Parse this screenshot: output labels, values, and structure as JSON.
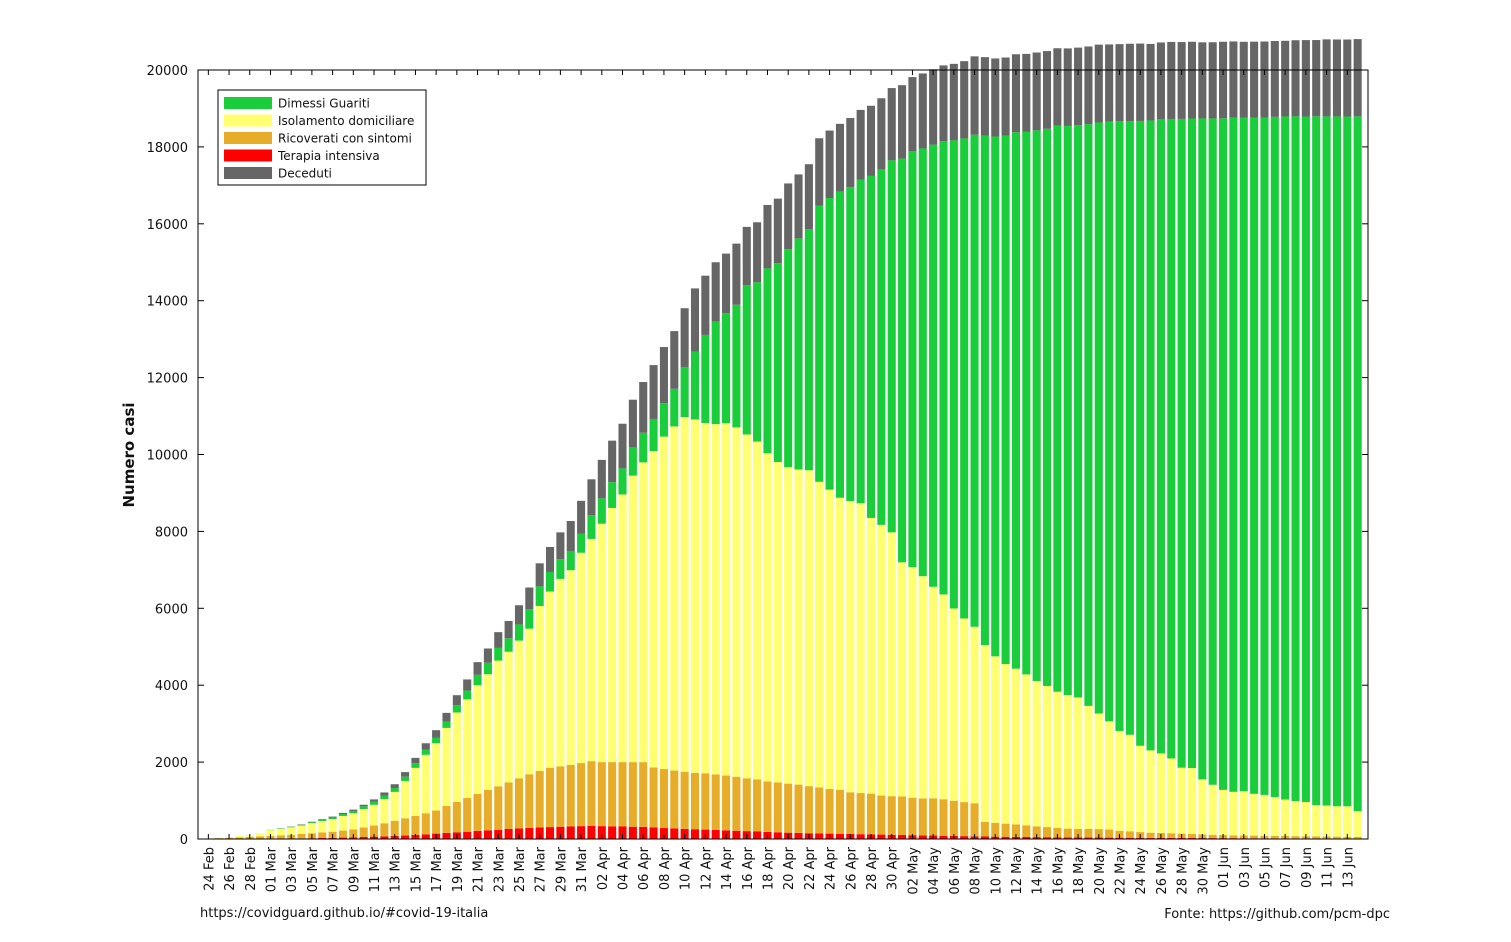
{
  "footer": {
    "left": "https://covidguard.github.io/#covid-19-italia",
    "right": "Fonte: https://github.com/pcm-dpc"
  },
  "chart_data": {
    "type": "bar",
    "stacked": true,
    "title": "",
    "xlabel": "",
    "ylabel": "Numero casi",
    "ylim": [
      0,
      20000
    ],
    "yticks": [
      0,
      2000,
      4000,
      6000,
      8000,
      10000,
      12000,
      14000,
      16000,
      18000,
      20000
    ],
    "legend_position": "top-left",
    "grid": false,
    "categories": [
      "24 Feb",
      "25 Feb",
      "26 Feb",
      "27 Feb",
      "28 Feb",
      "29 Feb",
      "01 Mar",
      "02 Mar",
      "03 Mar",
      "04 Mar",
      "05 Mar",
      "06 Mar",
      "07 Mar",
      "08 Mar",
      "09 Mar",
      "10 Mar",
      "11 Mar",
      "12 Mar",
      "13 Mar",
      "14 Mar",
      "15 Mar",
      "16 Mar",
      "17 Mar",
      "18 Mar",
      "19 Mar",
      "20 Mar",
      "21 Mar",
      "22 Mar",
      "23 Mar",
      "24 Mar",
      "25 Mar",
      "26 Mar",
      "27 Mar",
      "28 Mar",
      "29 Mar",
      "30 Mar",
      "31 Mar",
      "01 Apr",
      "02 Apr",
      "03 Apr",
      "04 Apr",
      "05 Apr",
      "06 Apr",
      "07 Apr",
      "08 Apr",
      "09 Apr",
      "10 Apr",
      "11 Apr",
      "12 Apr",
      "13 Apr",
      "14 Apr",
      "15 Apr",
      "16 Apr",
      "17 Apr",
      "18 Apr",
      "19 Apr",
      "20 Apr",
      "21 Apr",
      "22 Apr",
      "23 Apr",
      "24 Apr",
      "25 Apr",
      "26 Apr",
      "27 Apr",
      "28 Apr",
      "29 Apr",
      "30 Apr",
      "01 May",
      "02 May",
      "03 May",
      "04 May",
      "05 May",
      "06 May",
      "07 May",
      "08 May",
      "09 May",
      "10 May",
      "11 May",
      "12 May",
      "13 May",
      "14 May",
      "15 May",
      "16 May",
      "17 May",
      "18 May",
      "19 May",
      "20 May",
      "21 May",
      "22 May",
      "23 May",
      "24 May",
      "25 May",
      "26 May",
      "27 May",
      "28 May",
      "29 May",
      "30 May",
      "31 May",
      "01 Jun",
      "02 Jun",
      "03 Jun",
      "04 Jun",
      "05 Jun",
      "06 Jun",
      "07 Jun",
      "08 Jun",
      "09 Jun",
      "10 Jun",
      "11 Jun",
      "12 Jun",
      "13 Jun",
      "14 Jun"
    ],
    "tick_labels": [
      "24 Feb",
      "26 Feb",
      "28 Feb",
      "01 Mar",
      "03 Mar",
      "05 Mar",
      "07 Mar",
      "09 Mar",
      "11 Mar",
      "13 Mar",
      "15 Mar",
      "17 Mar",
      "19 Mar",
      "21 Mar",
      "23 Mar",
      "25 Mar",
      "27 Mar",
      "29 Mar",
      "31 Mar",
      "02 Apr",
      "04 Apr",
      "06 Apr",
      "08 Apr",
      "10 Apr",
      "12 Apr",
      "14 Apr",
      "16 Apr",
      "18 Apr",
      "20 Apr",
      "22 Apr",
      "24 Apr",
      "26 Apr",
      "28 Apr",
      "30 Apr",
      "02 May",
      "04 May",
      "06 May",
      "08 May",
      "10 May",
      "12 May",
      "14 May",
      "16 May",
      "18 May",
      "20 May",
      "22 May",
      "24 May",
      "26 May",
      "28 May",
      "30 May",
      "01 Jun",
      "03 Jun",
      "05 Jun",
      "07 Jun",
      "09 Jun",
      "11 Jun",
      "13 Jun"
    ],
    "series": [
      {
        "name": "Terapia intensiva",
        "color": "#ff0000",
        "values": [
          1,
          2,
          3,
          4,
          5,
          6,
          8,
          10,
          13,
          17,
          21,
          26,
          31,
          37,
          44,
          52,
          61,
          70,
          80,
          90,
          105,
          120,
          140,
          160,
          175,
          190,
          210,
          225,
          240,
          260,
          275,
          290,
          300,
          310,
          320,
          330,
          335,
          340,
          335,
          330,
          325,
          320,
          315,
          300,
          285,
          275,
          265,
          255,
          245,
          235,
          225,
          215,
          205,
          195,
          185,
          175,
          165,
          160,
          150,
          145,
          140,
          135,
          130,
          125,
          120,
          115,
          110,
          105,
          100,
          95,
          90,
          85,
          80,
          75,
          70,
          65,
          60,
          58,
          55,
          52,
          50,
          48,
          45,
          43,
          41,
          40,
          38,
          36,
          35,
          33,
          32,
          30,
          29,
          28,
          27,
          26,
          25,
          24,
          23,
          22,
          21,
          20,
          19,
          18,
          17,
          17,
          16,
          16,
          15,
          15,
          14,
          14
        ]
      },
      {
        "name": "Ricoverati con sintomi",
        "color": "#e8ad28",
        "values": [
          11,
          20,
          28,
          40,
          52,
          63,
          72,
          86,
          97,
          113,
          129,
          144,
          159,
          183,
          206,
          248,
          289,
          340,
          395,
          450,
          495,
          550,
          600,
          700,
          790,
          880,
          960,
          1055,
          1130,
          1210,
          1305,
          1395,
          1470,
          1545,
          1570,
          1600,
          1640,
          1685,
          1665,
          1670,
          1675,
          1680,
          1685,
          1560,
          1535,
          1505,
          1485,
          1465,
          1465,
          1445,
          1425,
          1405,
          1375,
          1355,
          1315,
          1295,
          1275,
          1255,
          1225,
          1195,
          1160,
          1145,
          1085,
          1070,
          1060,
          1015,
          1005,
          1000,
          975,
          960,
          970,
          950,
          915,
          885,
          860,
          380,
          360,
          342,
          325,
          304,
          280,
          262,
          245,
          227,
          220,
          222,
          220,
          214,
          180,
          168,
          148,
          134,
          131,
          121,
          113,
          104,
          95,
          86,
          80,
          75,
          71,
          69,
          66,
          64,
          61,
          58,
          56,
          53,
          49,
          47,
          43,
          40
        ]
      },
      {
        "name": "Isolamento domiciliare",
        "color": "#ffff70",
        "values": [
          0,
          0,
          20,
          32,
          45,
          80,
          150,
          170,
          195,
          220,
          260,
          300,
          330,
          380,
          420,
          480,
          540,
          630,
          750,
          970,
          1250,
          1520,
          1750,
          2030,
          2325,
          2560,
          2830,
          3005,
          3270,
          3400,
          3580,
          3785,
          4290,
          4580,
          4875,
          5060,
          5470,
          5780,
          6200,
          6610,
          6960,
          7450,
          7795,
          8230,
          8645,
          8950,
          9225,
          9190,
          9110,
          9110,
          9165,
          9085,
          8940,
          8785,
          8530,
          8335,
          8230,
          8195,
          8215,
          7950,
          7785,
          7595,
          7575,
          7535,
          7170,
          7040,
          6860,
          6090,
          5995,
          5780,
          5500,
          5325,
          5000,
          4775,
          4590,
          4600,
          4330,
          4150,
          4050,
          3925,
          3780,
          3670,
          3540,
          3475,
          3420,
          3200,
          3005,
          2810,
          2595,
          2510,
          2245,
          2140,
          2065,
          1945,
          1715,
          1715,
          1430,
          1300,
          1175,
          1130,
          1150,
          1086,
          1062,
          1009,
          948,
          913,
          891,
          810,
          806,
          789,
          793,
          670
        ]
      },
      {
        "name": "Dimessi Guariti",
        "color": "#1acd3a",
        "values": [
          0,
          0,
          0,
          0,
          0,
          0,
          5,
          10,
          15,
          20,
          25,
          30,
          40,
          50,
          60,
          70,
          80,
          90,
          100,
          110,
          120,
          130,
          140,
          160,
          190,
          230,
          270,
          300,
          330,
          350,
          420,
          510,
          510,
          510,
          510,
          500,
          500,
          620,
          660,
          670,
          680,
          735,
          770,
          835,
          870,
          980,
          1300,
          1770,
          2290,
          2665,
          2860,
          3190,
          3880,
          4145,
          4810,
          5170,
          5670,
          6010,
          6275,
          7185,
          7585,
          7960,
          8160,
          8420,
          8895,
          9245,
          9675,
          10500,
          10815,
          11125,
          11500,
          11785,
          12175,
          12485,
          12795,
          13250,
          13520,
          13745,
          13950,
          14110,
          14320,
          14490,
          14720,
          14800,
          14885,
          15130,
          15372,
          15593,
          15855,
          15960,
          16250,
          16384,
          16491,
          16633,
          16873,
          16893,
          17190,
          17330,
          17465,
          17530,
          17515,
          17589,
          17618,
          17690,
          17766,
          17806,
          17828,
          17917,
          17923,
          17941,
          17940,
          18070
        ]
      },
      {
        "name": "Deceduti",
        "color": "#666666",
        "values": [
          0,
          0,
          0,
          0,
          0,
          0,
          2,
          4,
          6,
          10,
          14,
          18,
          22,
          28,
          34,
          40,
          60,
          80,
          100,
          120,
          140,
          170,
          200,
          230,
          260,
          290,
          330,
          370,
          410,
          450,
          500,
          560,
          600,
          650,
          700,
          780,
          850,
          930,
          1000,
          1080,
          1160,
          1240,
          1320,
          1400,
          1460,
          1500,
          1530,
          1640,
          1540,
          1545,
          1550,
          1590,
          1520,
          1560,
          1650,
          1680,
          1710,
          1665,
          1685,
          1750,
          1755,
          1765,
          1800,
          1812,
          1825,
          1850,
          1880,
          1910,
          1930,
          1950,
          1960,
          1975,
          1990,
          2010,
          2040,
          2040,
          2030,
          2030,
          2030,
          2028,
          2025,
          2022,
          2016,
          2017,
          2016,
          2020,
          2025,
          2012,
          2008,
          2012,
          2013,
          1990,
          2000,
          2002,
          1999,
          1997,
          1980,
          1982,
          1992,
          1986,
          1977,
          1973,
          1976,
          1973,
          1968,
          1980,
          1987,
          1983,
          2004,
          2002,
          2003,
          2010
        ]
      }
    ]
  }
}
